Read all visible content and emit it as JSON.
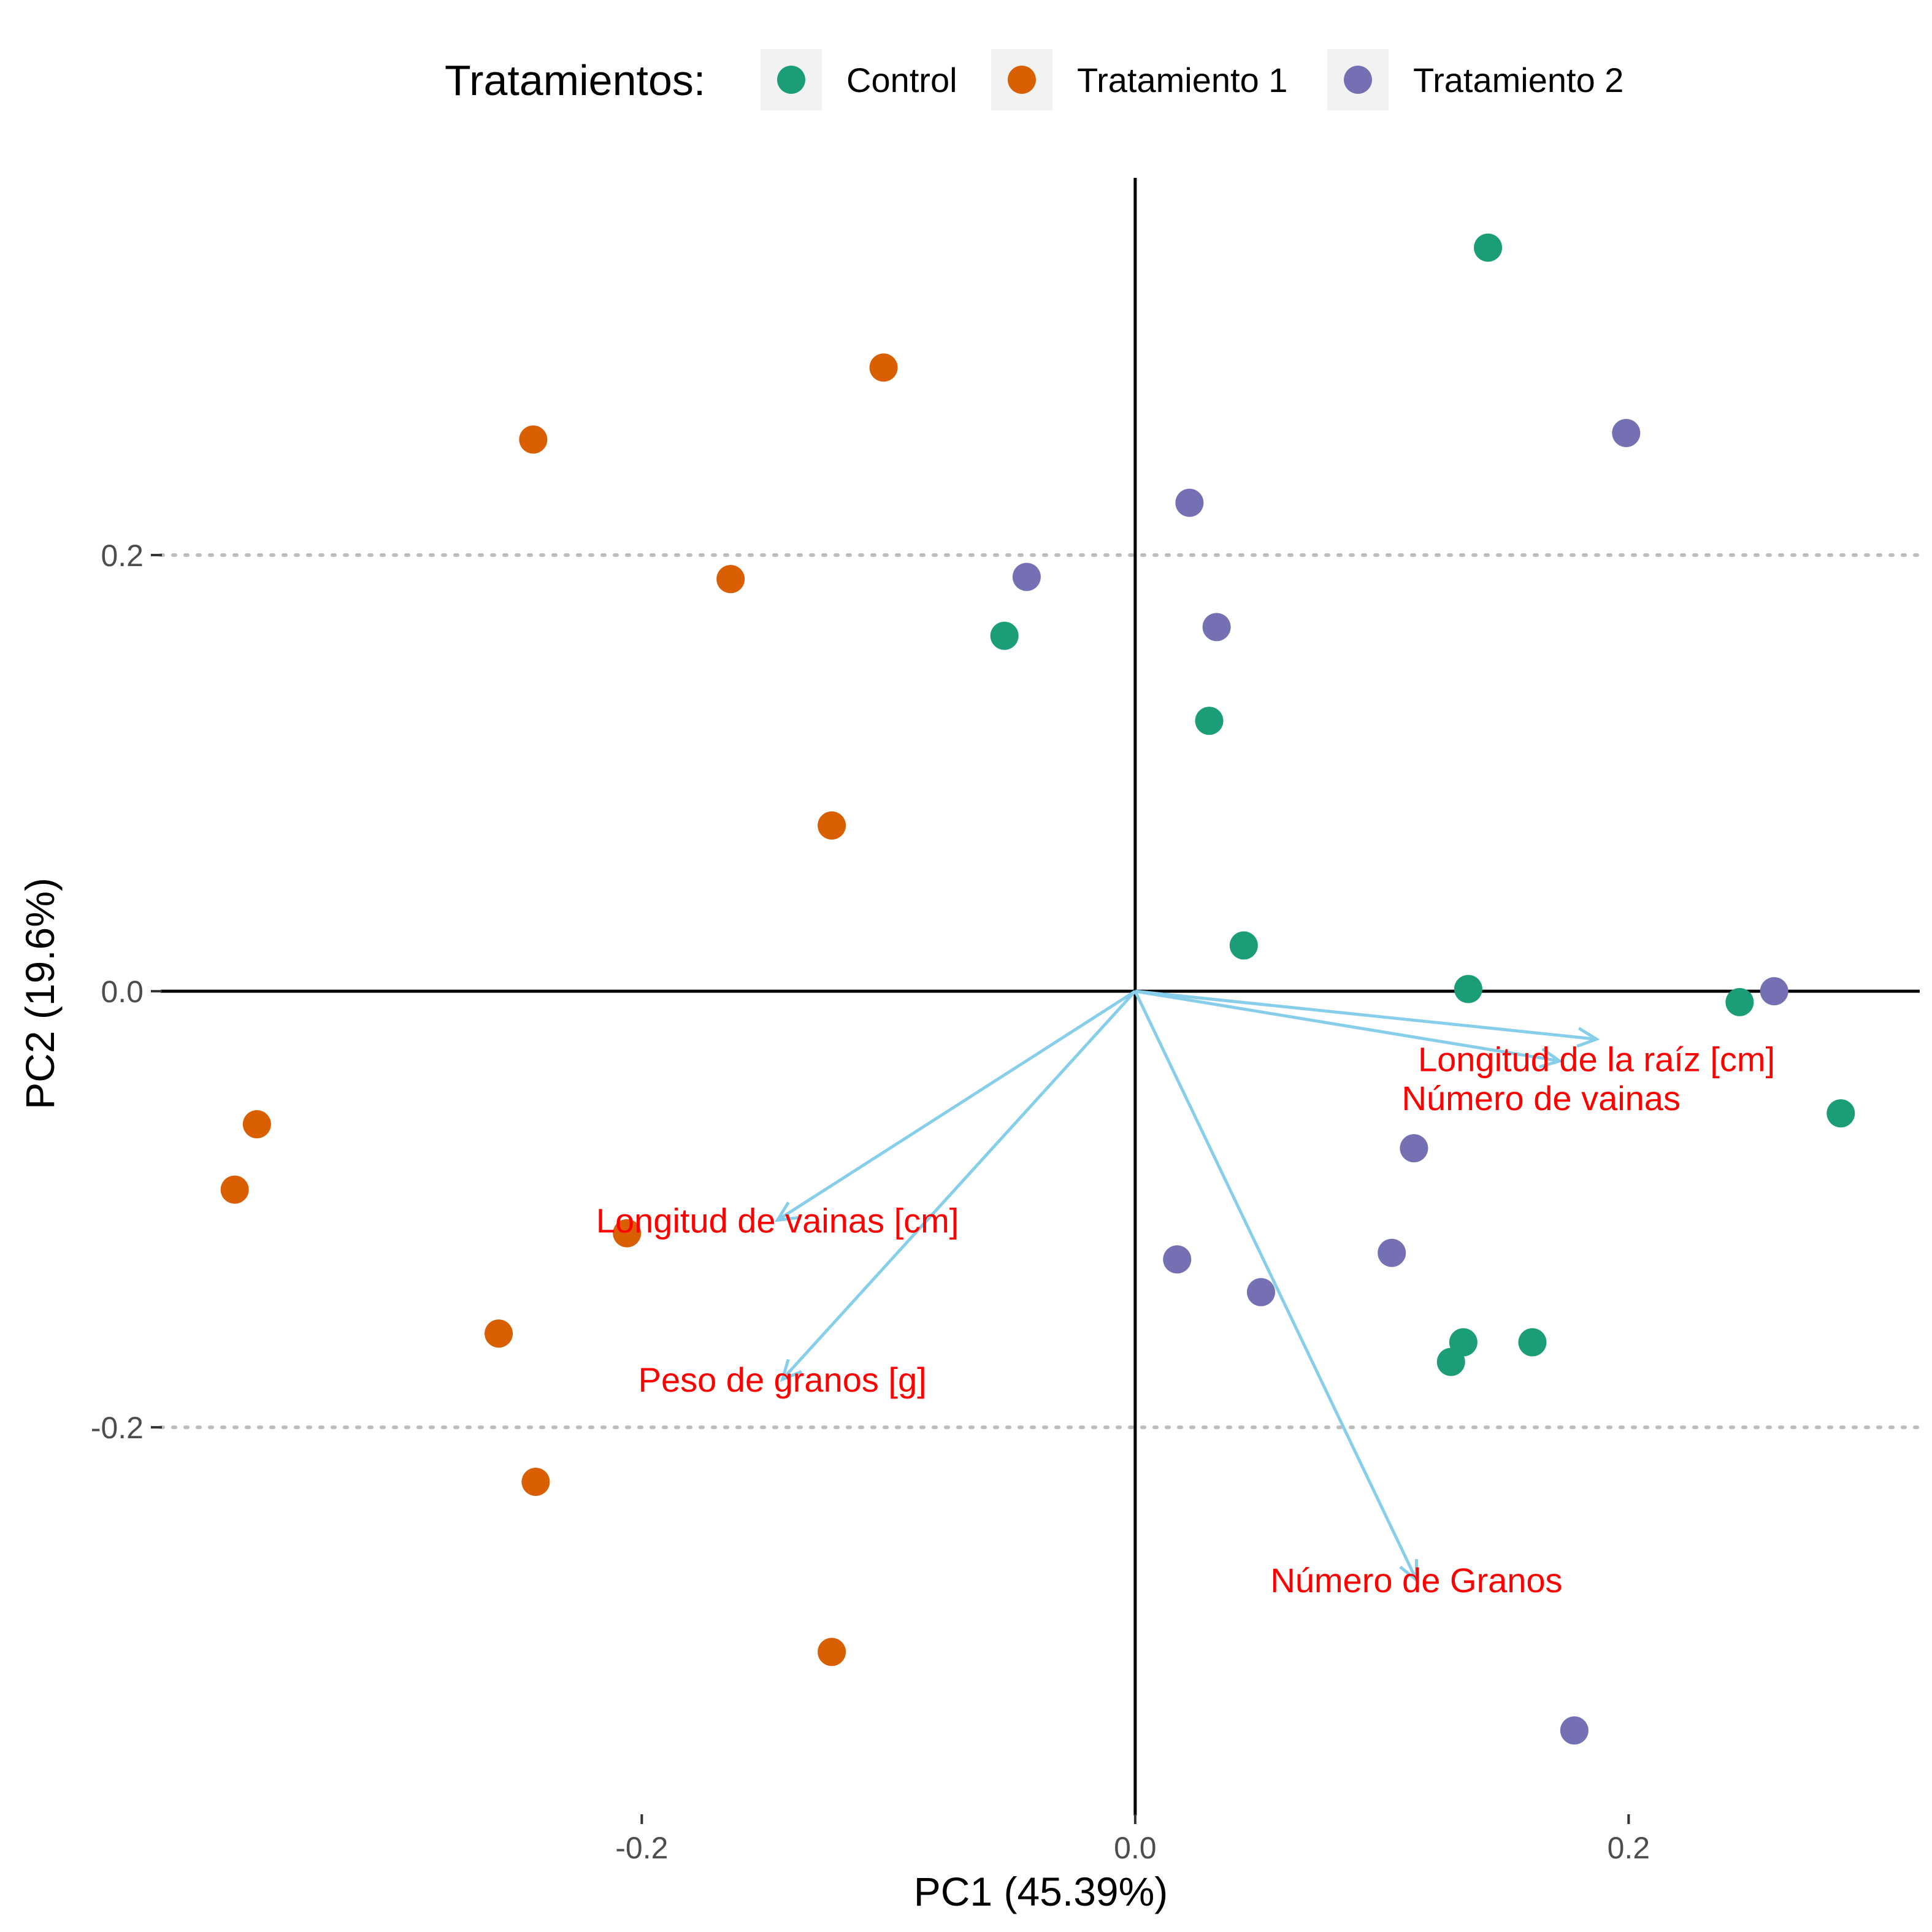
{
  "legend": {
    "title": "Tratamientos:",
    "entries": [
      {
        "label": "Control",
        "color": "#1b9e77"
      },
      {
        "label": "Tratamiento 1",
        "color": "#d95f02"
      },
      {
        "label": "Tratamiento 2",
        "color": "#7570b3"
      }
    ]
  },
  "chart_data": {
    "type": "scatter",
    "title": "",
    "xlabel": "PC1 (45.39%)",
    "ylabel": "PC2 (19.6%)",
    "xlim": [
      -0.395,
      0.318
    ],
    "ylim": [
      -0.378,
      0.373
    ],
    "x_ticks": [
      {
        "value": -0.2,
        "label": "-0.2"
      },
      {
        "value": 0.0,
        "label": "0.0"
      },
      {
        "value": 0.2,
        "label": "0.2"
      }
    ],
    "y_ticks": [
      {
        "value": 0.2,
        "label": "0.2"
      },
      {
        "value": 0.0,
        "label": "0.0"
      },
      {
        "value": -0.2,
        "label": "-0.2"
      }
    ],
    "grid": "major y dotted",
    "reference_lines": {
      "x": 0,
      "y": 0
    },
    "legend_position": "top",
    "series": [
      {
        "name": "Control",
        "color": "#1b9e77",
        "points": [
          [
            0.143,
            0.341
          ],
          [
            -0.053,
            0.163
          ],
          [
            0.03,
            0.124
          ],
          [
            0.044,
            0.021
          ],
          [
            0.135,
            0.001
          ],
          [
            0.245,
            -0.005
          ],
          [
            0.286,
            -0.056
          ],
          [
            0.133,
            -0.161
          ],
          [
            0.128,
            -0.17
          ],
          [
            0.161,
            -0.161
          ]
        ]
      },
      {
        "name": "Tratamiento 1",
        "color": "#d95f02",
        "points": [
          [
            -0.102,
            0.286
          ],
          [
            -0.244,
            0.253
          ],
          [
            -0.164,
            0.189
          ],
          [
            -0.123,
            0.076
          ],
          [
            -0.356,
            -0.061
          ],
          [
            -0.365,
            -0.091
          ],
          [
            -0.206,
            -0.111
          ],
          [
            -0.258,
            -0.157
          ],
          [
            -0.243,
            -0.225
          ],
          [
            -0.123,
            -0.303
          ]
        ]
      },
      {
        "name": "Tratamiento 2",
        "color": "#7570b3",
        "points": [
          [
            0.199,
            0.256
          ],
          [
            0.022,
            0.224
          ],
          [
            -0.044,
            0.19
          ],
          [
            0.033,
            0.167
          ],
          [
            0.259,
            0.0
          ],
          [
            0.113,
            -0.072
          ],
          [
            0.104,
            -0.12
          ],
          [
            0.017,
            -0.123
          ],
          [
            0.051,
            -0.138
          ],
          [
            0.178,
            -0.339
          ]
        ]
      }
    ],
    "loadings": {
      "color": "#87ceeb",
      "label_color": "#ff0000",
      "vectors": [
        {
          "label": "Longitud de la raíz [cm]",
          "x": 0.187,
          "y": -0.022
        },
        {
          "label": "Número de vainas",
          "x": 0.172,
          "y": -0.032
        },
        {
          "label": "Longitud de vainas [cm]",
          "x": -0.145,
          "y": -0.105
        },
        {
          "label": "Peso de granos [g]",
          "x": -0.143,
          "y": -0.178
        },
        {
          "label": "Número de Granos",
          "x": 0.114,
          "y": -0.27
        }
      ]
    }
  }
}
